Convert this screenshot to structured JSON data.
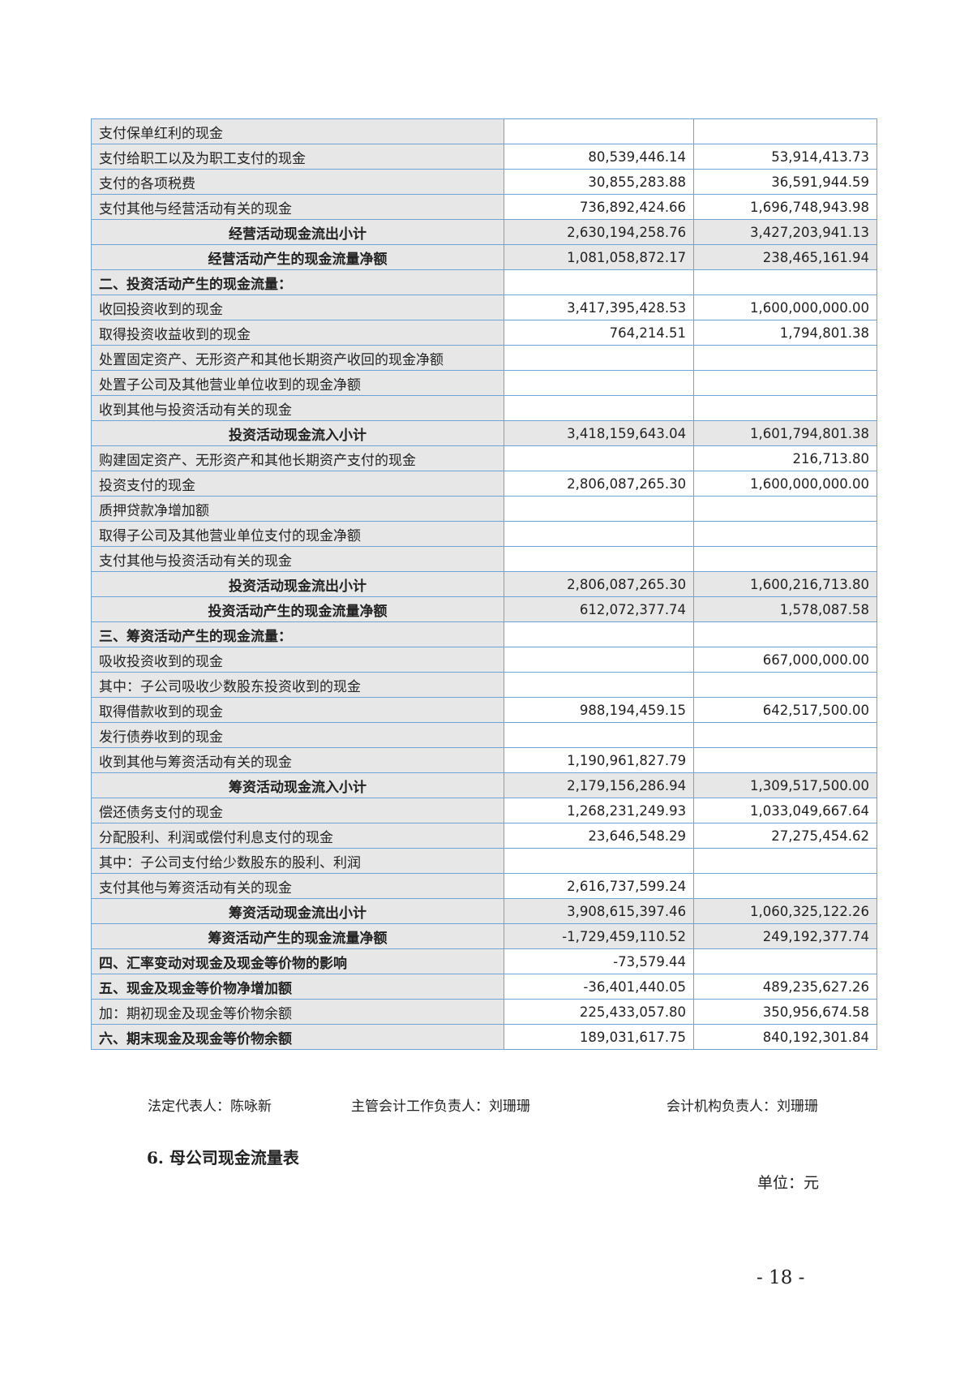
{
  "table": {
    "rows": [
      [
        "支付保单红利的现金",
        null,
        null
      ],
      [
        "支付给职工以及为职工支付的现金",
        "80,539,446.14",
        "53,914,413.73"
      ],
      [
        "支付的各项税费",
        "30,855,283.88",
        "36,591,944.59"
      ],
      [
        "支付其他与经营活动有关的现金",
        "736,892,424.66",
        "1,696,748,943.98"
      ],
      [
        "经营活动现金流出小计",
        "2,630,194,258.76",
        "3,427,203,941.13"
      ],
      [
        "经营活动产生的现金流量净额",
        "1,081,058,872.17",
        "238,465,161.94"
      ],
      [
        "二、投资活动产生的现金流量：",
        null,
        null
      ],
      [
        "收回投资收到的现金",
        "3,417,395,428.53",
        "1,600,000,000.00"
      ],
      [
        "取得投资收益收到的现金",
        "764,214.51",
        "1,794,801.38"
      ],
      [
        "处置固定资产、无形资产和其他长期资产收回的现金净额",
        null,
        null
      ],
      [
        "处置子公司及其他营业单位收到的现金净额",
        null,
        null
      ],
      [
        "收到其他与投资活动有关的现金",
        null,
        null
      ],
      [
        "投资活动现金流入小计",
        "3,418,159,643.04",
        "1,601,794,801.38"
      ],
      [
        "购建固定资产、无形资产和其他长期资产支付的现金",
        null,
        "216,713.80"
      ],
      [
        "投资支付的现金",
        "2,806,087,265.30",
        "1,600,000,000.00"
      ],
      [
        "质押贷款净增加额",
        null,
        null
      ],
      [
        "取得子公司及其他营业单位支付的现金净额",
        null,
        null
      ],
      [
        "支付其他与投资活动有关的现金",
        null,
        null
      ],
      [
        "投资活动现金流出小计",
        "2,806,087,265.30",
        "1,600,216,713.80"
      ],
      [
        "投资活动产生的现金流量净额",
        "612,072,377.74",
        "1,578,087.58"
      ],
      [
        "三、筹资活动产生的现金流量：",
        null,
        null
      ],
      [
        "吸收投资收到的现金",
        null,
        "667,000,000.00"
      ],
      [
        "其中：子公司吸收少数股东投资收到的现金",
        null,
        null
      ],
      [
        "取得借款收到的现金",
        "988,194,459.15",
        "642,517,500.00"
      ],
      [
        "发行债券收到的现金",
        null,
        null
      ],
      [
        "收到其他与筹资活动有关的现金",
        "1,190,961,827.79",
        null
      ],
      [
        "筹资活动现金流入小计",
        "2,179,156,286.94",
        "1,309,517,500.00"
      ],
      [
        "偿还债务支付的现金",
        "1,268,231,249.93",
        "1,033,049,667.64"
      ],
      [
        "分配股利、利润或偿付利息支付的现金",
        "23,646,548.29",
        "27,275,454.62"
      ],
      [
        "其中：子公司支付给少数股东的股利、利润",
        null,
        null
      ],
      [
        "支付其他与筹资活动有关的现金",
        "2,616,737,599.24",
        null
      ],
      [
        "筹资活动现金流出小计",
        "3,908,615,397.46",
        "1,060,325,122.26"
      ],
      [
        "筹资活动产生的现金流量净额",
        "-1,729,459,110.52",
        "249,192,377.74"
      ],
      [
        "四、汇率变动对现金及现金等价物的影响",
        "-73,579.44",
        null
      ],
      [
        "五、现金及现金等价物净增加额",
        "-36,401,440.05",
        "489,235,627.26"
      ],
      [
        "加：期初现金及现金等价物余额",
        "225,433,057.80",
        "350,956,674.58"
      ],
      [
        "六、期末现金及现金等价物余额",
        "189,031,617.75",
        "840,192,301.84"
      ]
    ]
  },
  "signatures": [
    "法定代表人：陈咏新",
    "主管会计工作负责人：刘珊珊",
    "会计机构负责人：刘珊珊"
  ],
  "section": {
    "title": "6. 母公司现金流量表",
    "unit": "单位：元"
  },
  "page_number": "- 18 -"
}
